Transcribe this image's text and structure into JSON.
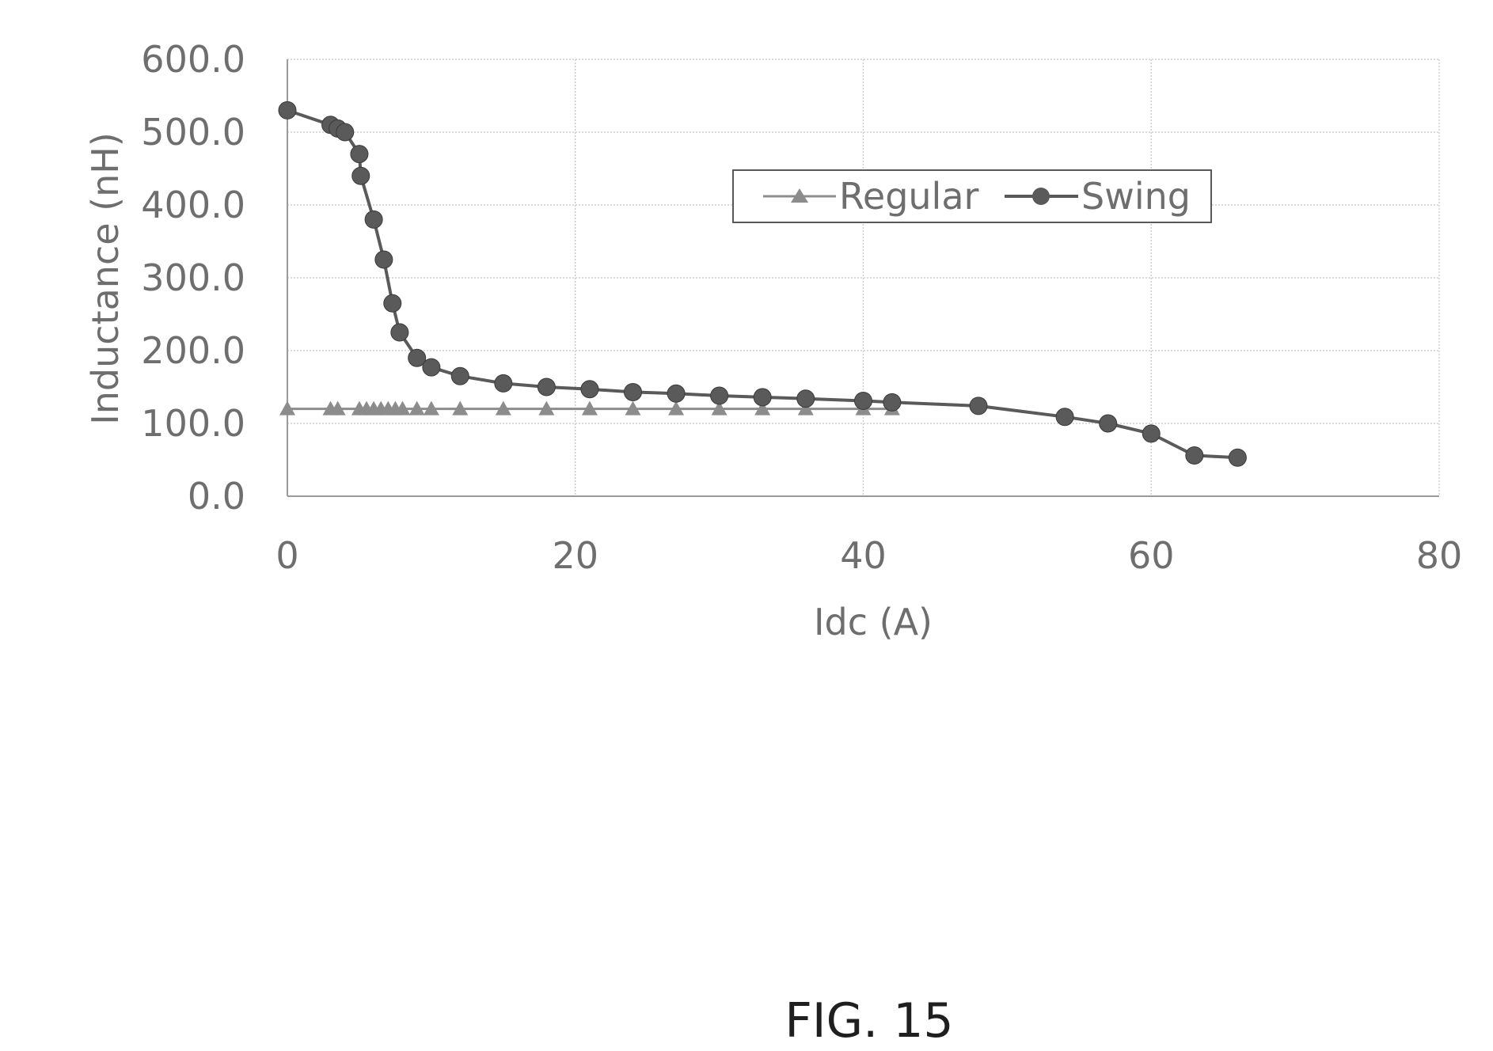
{
  "chart_data": {
    "type": "line",
    "title": "",
    "xlabel": "Idc (A)",
    "ylabel": "Inductance (nH)",
    "xlim": [
      0,
      80
    ],
    "ylim": [
      0,
      600
    ],
    "x_ticks": [
      0,
      20,
      40,
      60,
      80
    ],
    "x_tick_labels": [
      "0",
      "20",
      "40",
      "60",
      "80"
    ],
    "y_ticks": [
      0,
      100,
      200,
      300,
      400,
      500,
      600
    ],
    "y_tick_labels": [
      "0.0",
      "100.0",
      "200.0",
      "300.0",
      "400.0",
      "500.0",
      "600.0"
    ],
    "grid": true,
    "legend_position": "upper-center-right",
    "series": [
      {
        "name": "Regular",
        "marker": "triangle",
        "color": "#8c8c8c",
        "x": [
          0,
          3,
          3.5,
          5,
          5.5,
          6,
          6.5,
          7,
          7.5,
          8,
          9,
          10,
          12,
          15,
          18,
          21,
          24,
          27,
          30,
          33,
          36,
          40,
          42
        ],
        "y": [
          120,
          120,
          120,
          120,
          120,
          120,
          120,
          120,
          120,
          120,
          120,
          120,
          120,
          120,
          120,
          120,
          120,
          120,
          120,
          120,
          120,
          120,
          120
        ]
      },
      {
        "name": "Swing",
        "marker": "circle",
        "color": "#5a5a5a",
        "x": [
          0,
          3,
          3.5,
          4,
          5,
          5.1,
          6,
          6.7,
          7.3,
          7.8,
          9,
          10,
          12,
          15,
          18,
          21,
          24,
          27,
          30,
          33,
          36,
          40,
          42,
          48,
          54,
          57,
          60,
          63,
          66
        ],
        "y": [
          530,
          510,
          505,
          500,
          470,
          440,
          380,
          325,
          265,
          225,
          190,
          177,
          165,
          155,
          150,
          147,
          143,
          141,
          138,
          136,
          134,
          131,
          129,
          124,
          109,
          100,
          86,
          56,
          53
        ]
      }
    ]
  },
  "figure_label": "FIG. 15"
}
